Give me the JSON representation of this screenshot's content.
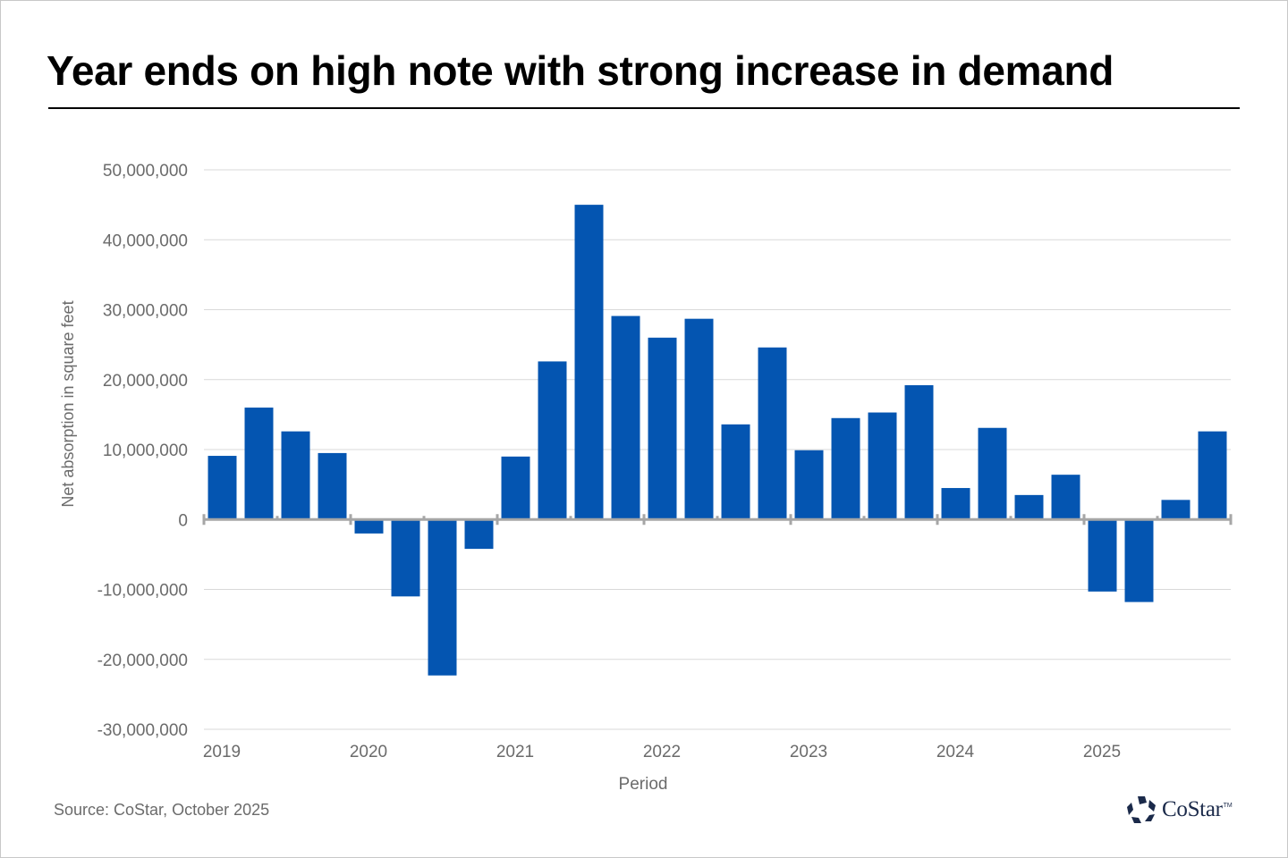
{
  "header": {
    "title": "Year ends on high note with strong increase in demand"
  },
  "footer": {
    "source": "Source: CoStar, October 2025",
    "logo_text": "CoStar",
    "logo_tm": "TM",
    "logo_icon": "costar-star-icon"
  },
  "colors": {
    "bar": "#0455b1",
    "grid": "#d9d9d9",
    "axis": "#a6a6a6",
    "label": "#6b6b6b"
  },
  "chart_data": {
    "type": "bar",
    "title": "Year ends on high note with strong increase in demand",
    "xlabel": "Period",
    "ylabel": "Net absorption in square feet",
    "ylim": [
      -30000000,
      50000000
    ],
    "yticks": [
      50000000,
      40000000,
      30000000,
      20000000,
      10000000,
      0,
      -10000000,
      -20000000,
      -30000000
    ],
    "ytick_labels": [
      "50,000,000",
      "40,000,000",
      "30,000,000",
      "20,000,000",
      "10,000,000",
      "0",
      "-10,000,000",
      "-20,000,000",
      "-30,000,000"
    ],
    "xtick_labels": [
      "2019",
      "2020",
      "2021",
      "2022",
      "2023",
      "2024",
      "2025"
    ],
    "grid": true,
    "legend": "none",
    "categories": [
      "2019 Q1",
      "2019 Q2",
      "2019 Q3",
      "2019 Q4",
      "2020 Q1",
      "2020 Q2",
      "2020 Q3",
      "2020 Q4",
      "2021 Q1",
      "2021 Q2",
      "2021 Q3",
      "2021 Q4",
      "2022 Q1",
      "2022 Q2",
      "2022 Q3",
      "2022 Q4",
      "2023 Q1",
      "2023 Q2",
      "2023 Q3",
      "2023 Q4",
      "2024 Q1",
      "2024 Q2",
      "2024 Q3",
      "2024 Q4",
      "2025 Q1",
      "2025 Q2",
      "2025 Q3",
      "2025 Q4"
    ],
    "series": [
      {
        "name": "Net absorption",
        "values": [
          9100000,
          16000000,
          12600000,
          9500000,
          -2000000,
          -11000000,
          -22300000,
          -4200000,
          9000000,
          22600000,
          45000000,
          29100000,
          26000000,
          28700000,
          13600000,
          24600000,
          9900000,
          14500000,
          15300000,
          19200000,
          4500000,
          13100000,
          3500000,
          6400000,
          -10300000,
          -11800000,
          2800000,
          12600000
        ]
      }
    ]
  }
}
